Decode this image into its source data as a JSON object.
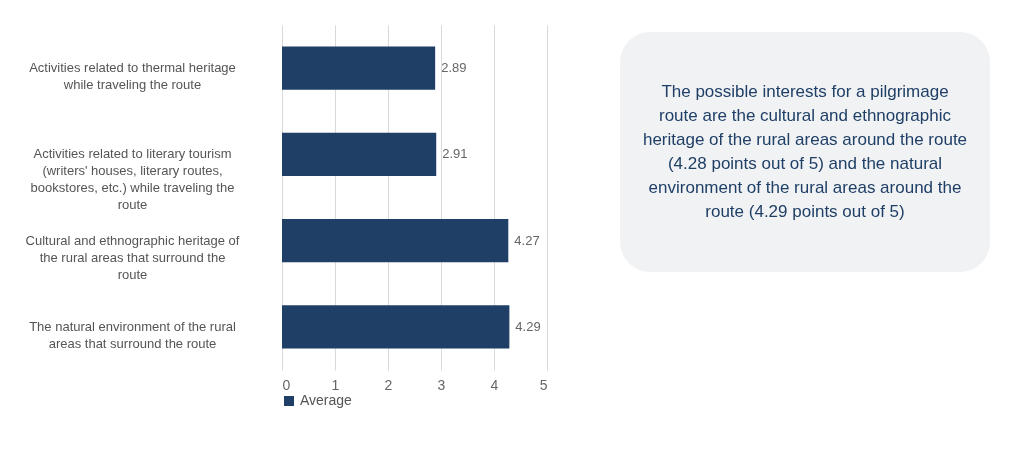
{
  "chart_data": {
    "type": "bar",
    "orientation": "horizontal",
    "categories": [
      "Activities related to thermal heritage while traveling the route",
      "Activities related to literary tourism (writers' houses, literary routes, bookstores, etc.) while traveling the route",
      "Cultural and ethnographic heritage of the rural areas that surround the route",
      "The natural environment of the rural areas that surround the route"
    ],
    "series": [
      {
        "name": "Average",
        "color": "#1f3f66",
        "values": [
          2.89,
          2.91,
          4.27,
          4.29
        ]
      }
    ],
    "xlim": [
      0,
      5
    ],
    "xticks": [
      0,
      1,
      2,
      3,
      4,
      5
    ],
    "grid": "x",
    "legend": "bottom",
    "data_labels": true,
    "annotations": [
      "The possible interests for a pilgrimage route are the cultural and ethnographic heritage of the rural areas around the route (4.28 points out of 5) and the natural environment of the rural areas around the route (4.29 points out of 5)"
    ]
  }
}
